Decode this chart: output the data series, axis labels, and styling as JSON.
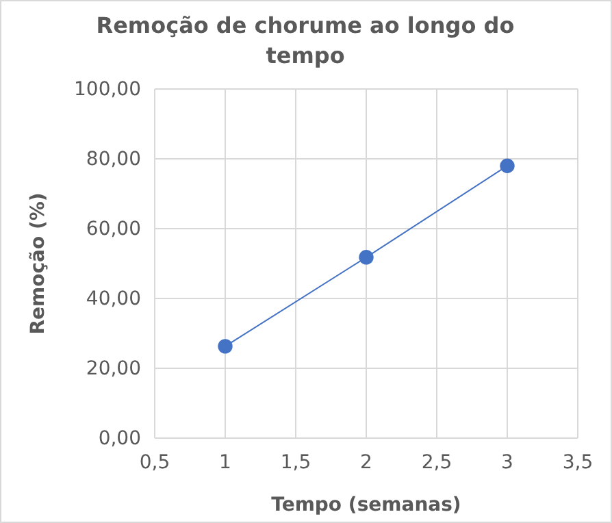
{
  "chart_data": {
    "type": "line",
    "title": "Remoção de chorume ao longo do tempo",
    "xlabel": "Tempo (semanas)",
    "ylabel": "Remoção (%)",
    "x": [
      1,
      2,
      3
    ],
    "series": [
      {
        "color": "#4472c4",
        "values": [
          26.3,
          51.8,
          78.0
        ]
      }
    ],
    "xlim": [
      0.5,
      3.5
    ],
    "xticks": [
      {
        "value": 0.5,
        "label": "0,5"
      },
      {
        "value": 1,
        "label": "1"
      },
      {
        "value": 1.5,
        "label": "1,5"
      },
      {
        "value": 2,
        "label": "2"
      },
      {
        "value": 2.5,
        "label": "2,5"
      },
      {
        "value": 3,
        "label": "3"
      },
      {
        "value": 3.5,
        "label": "3,5"
      }
    ],
    "ylim": [
      0,
      100
    ],
    "yticks": [
      {
        "value": 0,
        "label": "0,00"
      },
      {
        "value": 20,
        "label": "20,00"
      },
      {
        "value": 40,
        "label": "40,00"
      },
      {
        "value": 60,
        "label": "60,00"
      },
      {
        "value": 80,
        "label": "80,00"
      },
      {
        "value": 100,
        "label": "100,00"
      }
    ],
    "grid": true,
    "marker": "circle",
    "line_style": "solid"
  }
}
